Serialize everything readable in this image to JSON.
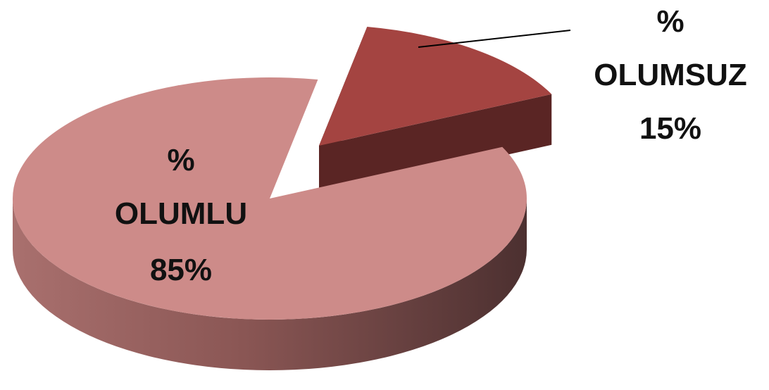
{
  "chart_data": {
    "type": "pie",
    "style": "3d-exploded",
    "slices": [
      {
        "label": "OLUMLU",
        "prefix": "%",
        "value": 85,
        "display": "85%",
        "color": "#cd8b89",
        "exploded": false
      },
      {
        "label": "OLUMSUZ",
        "prefix": "%",
        "value": 15,
        "display": "15%",
        "color": "#a44441",
        "exploded": true
      }
    ],
    "legend": "none"
  }
}
